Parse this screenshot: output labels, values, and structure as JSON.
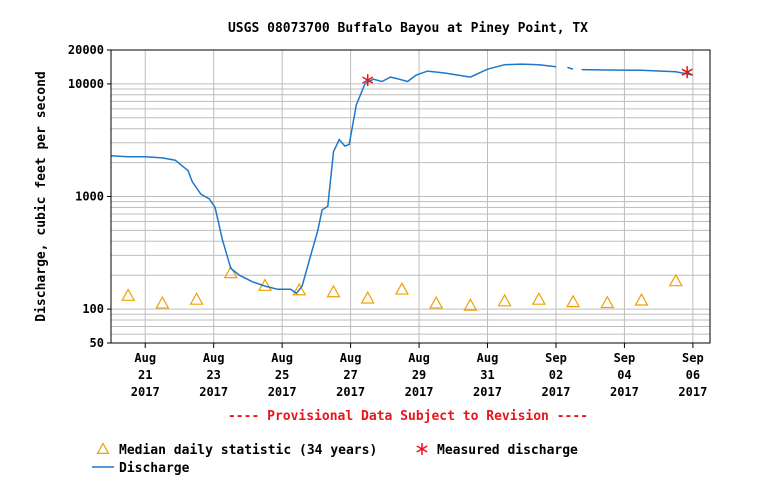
{
  "chart_data": {
    "type": "line",
    "title": "USGS 08073700 Buffalo Bayou at Piney Point, TX",
    "ylabel": "Discharge, cubic feet per second",
    "xlabel": "",
    "yscale": "log",
    "ylim": [
      50,
      20000
    ],
    "xlim": [
      "2017-08-20",
      "2017-09-06"
    ],
    "grid": true,
    "ytick_labels": [
      "20000",
      "10000",
      "1000",
      "100",
      "50"
    ],
    "ytick_values": [
      20000,
      10000,
      1000,
      100,
      50
    ],
    "xtick_labels": [
      {
        "date": "2017-08-21",
        "lines": [
          "Aug",
          "21",
          "2017"
        ]
      },
      {
        "date": "2017-08-23",
        "lines": [
          "Aug",
          "23",
          "2017"
        ]
      },
      {
        "date": "2017-08-25",
        "lines": [
          "Aug",
          "25",
          "2017"
        ]
      },
      {
        "date": "2017-08-27",
        "lines": [
          "Aug",
          "27",
          "2017"
        ]
      },
      {
        "date": "2017-08-29",
        "lines": [
          "Aug",
          "29",
          "2017"
        ]
      },
      {
        "date": "2017-08-31",
        "lines": [
          "Aug",
          "31",
          "2017"
        ]
      },
      {
        "date": "2017-09-02",
        "lines": [
          "Sep",
          "02",
          "2017"
        ]
      },
      {
        "date": "2017-09-04",
        "lines": [
          "Sep",
          "04",
          "2017"
        ]
      },
      {
        "date": "2017-09-06",
        "lines": [
          "Sep",
          "06",
          "2017"
        ]
      }
    ],
    "annotation": "---- Provisional Data Subject to Revision ----",
    "series": [
      {
        "name": "Discharge",
        "kind": "line",
        "color": "#1f77c8",
        "points": [
          [
            "2017-08-20 00:00",
            2300
          ],
          [
            "2017-08-20 12:00",
            2250
          ],
          [
            "2017-08-21 00:00",
            2250
          ],
          [
            "2017-08-21 12:00",
            2200
          ],
          [
            "2017-08-21 21:00",
            2100
          ],
          [
            "2017-08-22 06:00",
            1700
          ],
          [
            "2017-08-22 09:00",
            1350
          ],
          [
            "2017-08-22 15:00",
            1050
          ],
          [
            "2017-08-22 21:00",
            950
          ],
          [
            "2017-08-23 01:00",
            800
          ],
          [
            "2017-08-23 06:00",
            420
          ],
          [
            "2017-08-23 12:00",
            230
          ],
          [
            "2017-08-23 18:00",
            200
          ],
          [
            "2017-08-24 03:00",
            175
          ],
          [
            "2017-08-24 12:00",
            160
          ],
          [
            "2017-08-24 21:00",
            150
          ],
          [
            "2017-08-25 06:00",
            150
          ],
          [
            "2017-08-25 10:00",
            138
          ],
          [
            "2017-08-25 14:00",
            160
          ],
          [
            "2017-08-25 20:00",
            300
          ],
          [
            "2017-08-26 01:00",
            500
          ],
          [
            "2017-08-26 04:00",
            760
          ],
          [
            "2017-08-26 08:00",
            820
          ],
          [
            "2017-08-26 12:00",
            2500
          ],
          [
            "2017-08-26 16:00",
            3200
          ],
          [
            "2017-08-26 20:00",
            2800
          ],
          [
            "2017-08-26 23:00",
            2900
          ],
          [
            "2017-08-27 04:00",
            6500
          ],
          [
            "2017-08-27 10:00",
            10000
          ],
          [
            "2017-08-27 16:00",
            11000
          ],
          [
            "2017-08-27 22:00",
            10500
          ],
          [
            "2017-08-28 04:00",
            11500
          ],
          [
            "2017-08-28 10:00",
            11000
          ],
          [
            "2017-08-28 16:00",
            10500
          ],
          [
            "2017-08-28 22:00",
            12000
          ],
          [
            "2017-08-29 06:00",
            13000
          ],
          [
            "2017-08-29 18:00",
            12500
          ],
          [
            "2017-08-30 12:00",
            11500
          ],
          [
            "2017-08-31 00:00",
            13500
          ],
          [
            "2017-08-31 12:00",
            14800
          ],
          [
            "2017-09-01 00:00",
            15000
          ],
          [
            "2017-09-01 12:00",
            14800
          ],
          [
            "2017-09-02 00:00",
            14200
          ],
          null,
          [
            "2017-09-02 08:00",
            14000
          ],
          [
            "2017-09-02 12:00",
            13500
          ],
          null,
          [
            "2017-09-02 18:00",
            13400
          ],
          [
            "2017-09-03 12:00",
            13300
          ],
          [
            "2017-09-04 12:00",
            13200
          ],
          [
            "2017-09-05 12:00",
            12800
          ],
          [
            "2017-09-06 00:00",
            12000
          ]
        ]
      },
      {
        "name": "Measured discharge",
        "kind": "marker",
        "marker": "asterisk",
        "color": "#e8161b",
        "points": [
          [
            "2017-08-27 12:00",
            10800
          ],
          [
            "2017-09-05 20:00",
            12700
          ]
        ]
      },
      {
        "name": "Median daily statistic (34 years)",
        "kind": "marker",
        "marker": "triangle",
        "color": "#f0a000",
        "points": [
          [
            "2017-08-20 12:00",
            132
          ],
          [
            "2017-08-21 12:00",
            113
          ],
          [
            "2017-08-22 12:00",
            122
          ],
          [
            "2017-08-23 12:00",
            210
          ],
          [
            "2017-08-24 12:00",
            162
          ],
          [
            "2017-08-25 12:00",
            148
          ],
          [
            "2017-08-26 12:00",
            142
          ],
          [
            "2017-08-27 12:00",
            125
          ],
          [
            "2017-08-28 12:00",
            150
          ],
          [
            "2017-08-29 12:00",
            113
          ],
          [
            "2017-08-30 12:00",
            108
          ],
          [
            "2017-08-31 12:00",
            118
          ],
          [
            "2017-09-01 12:00",
            122
          ],
          [
            "2017-09-02 12:00",
            116
          ],
          [
            "2017-09-03 12:00",
            114
          ],
          [
            "2017-09-04 12:00",
            120
          ],
          [
            "2017-09-05 12:00",
            178
          ]
        ]
      }
    ],
    "legend": [
      {
        "label": "Median daily statistic (34 years)",
        "marker": "triangle",
        "color": "#f0a000"
      },
      {
        "label": "Measured discharge",
        "marker": "asterisk",
        "color": "#e8161b"
      },
      {
        "label": "Discharge",
        "marker": "line",
        "color": "#1f77c8"
      }
    ],
    "legend_position": "bottom-left"
  }
}
